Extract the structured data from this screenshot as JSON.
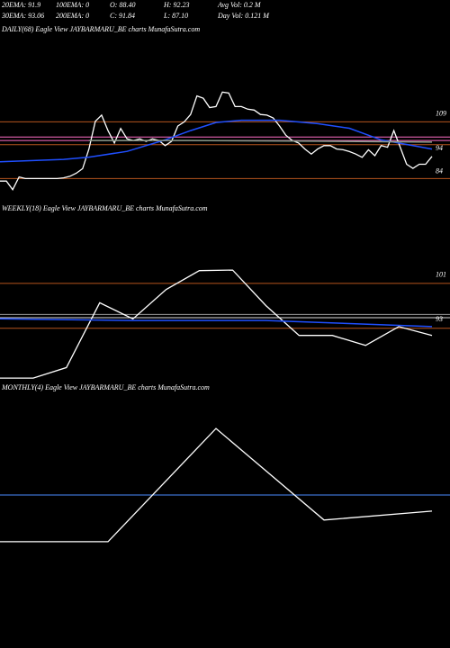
{
  "header": {
    "stats": [
      [
        "20EMA: 91.9",
        "100EMA: 0",
        "O: 88.40",
        "H: 92.23",
        "Avg Vol: 0.2  M"
      ],
      [
        "30EMA: 93.06",
        "200EMA: 0",
        "C: 91.84",
        "L: 87.10",
        "Day Vol: 0.121 M"
      ]
    ]
  },
  "chart_data": [
    {
      "type": "line",
      "title": "DAILY(68) Eagle  View  JAYBARMARU_BE charts MunafaSutra.com",
      "xlim": [
        0,
        68
      ],
      "ylim": [
        73,
        144
      ],
      "yticks": [
        109,
        94,
        84
      ],
      "levels": [
        {
          "value": 106.8,
          "color": "#b5541d"
        },
        {
          "value": 100.2,
          "color": "#ff6ec7"
        },
        {
          "value": 98.7,
          "color": "#ff6ec7"
        },
        {
          "value": 96.9,
          "color": "#b5541d"
        },
        {
          "value": 82.2,
          "color": "#b5541d"
        }
      ],
      "series": [
        {
          "color": "#ffffff",
          "x": [
            0,
            1,
            2,
            3,
            4,
            5,
            6,
            7,
            8,
            9,
            10,
            11,
            12,
            13,
            14,
            15,
            16,
            17,
            18,
            19,
            20,
            21,
            22,
            23,
            24,
            25,
            26,
            27,
            28,
            29,
            30,
            31,
            32,
            33,
            34,
            35,
            36,
            37,
            38,
            39,
            40,
            41,
            42,
            43,
            44,
            45,
            46,
            47,
            48,
            49,
            50,
            51,
            52,
            53,
            54,
            55,
            56,
            57,
            58,
            59,
            60,
            61,
            62,
            63,
            64,
            65,
            66,
            67,
            68
          ],
          "values": [
            81.1,
            81.1,
            77.4,
            82.9,
            82.2,
            82.2,
            82.2,
            82.2,
            82.2,
            82.2,
            82.5,
            83.2,
            84.5,
            86.5,
            95,
            107,
            109.7,
            103,
            97.6,
            103.9,
            99.4,
            98.7,
            99.4,
            98.3,
            99.4,
            98.7,
            96.5,
            98.3,
            105,
            106.8,
            110,
            118,
            117,
            113,
            113.4,
            119.7,
            119.3,
            113.4,
            113.4,
            112.3,
            111.9,
            110,
            109.7,
            108.5,
            105,
            101,
            98.7,
            97.6,
            95,
            92.8,
            95,
            96.5,
            96.5,
            95,
            94.7,
            93.9,
            92.8,
            91.4,
            94.7,
            92.1,
            96.5,
            95.8,
            103,
            95.8,
            88.4,
            86.6,
            88.4,
            88.4,
            91.8
          ]
        },
        {
          "color": "#1f4fff",
          "x": [
            0,
            10,
            14,
            20,
            26,
            30,
            34,
            38,
            44,
            50,
            55,
            60,
            64,
            68
          ],
          "values": [
            89.5,
            90.5,
            91.5,
            94,
            99,
            103,
            106.5,
            107.5,
            107.5,
            106,
            104,
            99,
            97,
            95
          ]
        },
        {
          "color": "#8a9a8a",
          "x": [
            14,
            30,
            50,
            68
          ],
          "values": [
            98.7,
            98.7,
            98.4,
            98
          ]
        }
      ]
    },
    {
      "type": "line",
      "title": "WEEKLY(18) Eagle  View  JAYBARMARU_BE charts MunafaSutra.com",
      "xlim": [
        0,
        13
      ],
      "ylim": [
        82.1,
        112.5
      ],
      "yticks": [
        101,
        93
      ],
      "levels": [
        {
          "value": 100,
          "color": "#b5541d"
        },
        {
          "value": 94.4,
          "color": "#999999"
        },
        {
          "value": 93.8,
          "color": "#dddddd"
        },
        {
          "value": 91.9,
          "color": "#b5541d"
        }
      ],
      "series": [
        {
          "color": "#ffffff",
          "x": [
            0,
            1,
            2,
            3,
            4,
            5,
            6,
            7,
            8,
            9,
            10,
            11,
            12,
            13
          ],
          "values": [
            82.9,
            82.9,
            84.8,
            96.5,
            93.6,
            98.9,
            102.3,
            102.4,
            96,
            90.6,
            90.6,
            88.8,
            92.2,
            90.6
          ]
        },
        {
          "color": "#1f4fff",
          "x": [
            0,
            4,
            8,
            13
          ],
          "values": [
            93.6,
            93.3,
            93.3,
            92.2
          ]
        }
      ]
    },
    {
      "type": "line",
      "title": "MONTHLY(4) Eagle  View  JAYBARMARU_BE charts MunafaSutra.com",
      "xlim": [
        0,
        4
      ],
      "ylim": [
        60,
        140
      ],
      "levels": [
        {
          "value": 108,
          "color": "#4a8cff"
        }
      ],
      "series": [
        {
          "color": "#ffffff",
          "x": [
            0,
            1,
            2,
            3,
            4
          ],
          "values": [
            92.9,
            92.9,
            129.5,
            99.9,
            102.8
          ]
        }
      ]
    }
  ]
}
